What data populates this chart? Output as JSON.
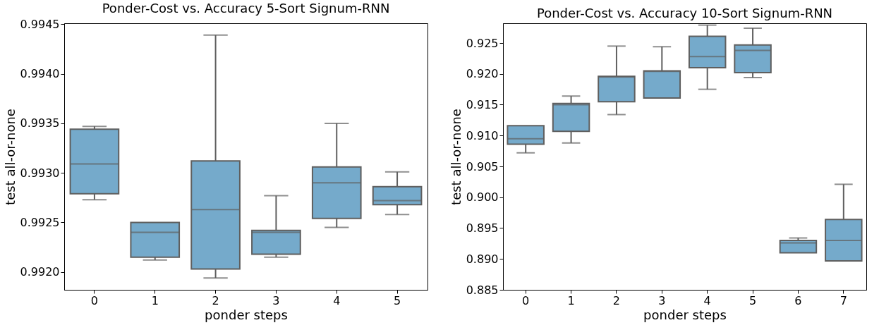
{
  "chart_data": [
    {
      "type": "box",
      "title": "Ponder-Cost vs. Accuracy 5-Sort Signum-RNN",
      "xlabel": "ponder steps",
      "ylabel": "test all-or-none",
      "categories": [
        "0",
        "1",
        "2",
        "3",
        "4",
        "5"
      ],
      "grid": false,
      "ylim": [
        0.99182,
        0.99451
      ],
      "yticks": [
        {
          "value": 0.992,
          "label": "0.9920"
        },
        {
          "value": 0.9925,
          "label": "0.9925"
        },
        {
          "value": 0.993,
          "label": "0.9930"
        },
        {
          "value": 0.9935,
          "label": "0.9935"
        },
        {
          "value": 0.994,
          "label": "0.9940"
        },
        {
          "value": 0.9945,
          "label": "0.9945"
        }
      ],
      "series": [
        {
          "color": "#75aacb",
          "boxes": [
            {
              "low": 0.99273,
              "q1": 0.99279,
              "median": 0.99309,
              "q3": 0.99344,
              "high": 0.99347
            },
            {
              "low": 0.99212,
              "q1": 0.99215,
              "median": 0.9924,
              "q3": 0.9925,
              "high": 0.9925
            },
            {
              "low": 0.99194,
              "q1": 0.99203,
              "median": 0.99263,
              "q3": 0.99312,
              "high": 0.99439
            },
            {
              "low": 0.99215,
              "q1": 0.99218,
              "median": 0.9924,
              "q3": 0.99242,
              "high": 0.99277
            },
            {
              "low": 0.99245,
              "q1": 0.99254,
              "median": 0.9929,
              "q3": 0.99306,
              "high": 0.9935
            },
            {
              "low": 0.99258,
              "q1": 0.99268,
              "median": 0.99272,
              "q3": 0.99286,
              "high": 0.99301
            }
          ]
        }
      ]
    },
    {
      "type": "box",
      "title": "Ponder-Cost vs. Accuracy 10-Sort Signum-RNN",
      "xlabel": "ponder steps",
      "ylabel": "test all-or-none",
      "categories": [
        "0",
        "1",
        "2",
        "3",
        "4",
        "5",
        "6",
        "7"
      ],
      "grid": false,
      "ylim": [
        0.885,
        0.9282
      ],
      "yticks": [
        {
          "value": 0.885,
          "label": "0.885"
        },
        {
          "value": 0.89,
          "label": "0.890"
        },
        {
          "value": 0.895,
          "label": "0.895"
        },
        {
          "value": 0.9,
          "label": "0.900"
        },
        {
          "value": 0.905,
          "label": "0.905"
        },
        {
          "value": 0.91,
          "label": "0.910"
        },
        {
          "value": 0.915,
          "label": "0.915"
        },
        {
          "value": 0.92,
          "label": "0.920"
        },
        {
          "value": 0.925,
          "label": "0.925"
        }
      ],
      "series": [
        {
          "color": "#75aacb",
          "boxes": [
            {
              "low": 0.9072,
              "q1": 0.9086,
              "median": 0.9095,
              "q3": 0.9116,
              "high": 0.9116
            },
            {
              "low": 0.9088,
              "q1": 0.9107,
              "median": 0.915,
              "q3": 0.9152,
              "high": 0.9164
            },
            {
              "low": 0.9134,
              "q1": 0.9155,
              "median": 0.9195,
              "q3": 0.9196,
              "high": 0.9245
            },
            {
              "low": 0.9161,
              "q1": 0.9161,
              "median": 0.9204,
              "q3": 0.9205,
              "high": 0.9244
            },
            {
              "low": 0.9175,
              "q1": 0.921,
              "median": 0.9228,
              "q3": 0.9261,
              "high": 0.9279
            },
            {
              "low": 0.9194,
              "q1": 0.9202,
              "median": 0.9238,
              "q3": 0.9247,
              "high": 0.9274
            },
            {
              "low": 0.891,
              "q1": 0.891,
              "median": 0.8926,
              "q3": 0.893,
              "high": 0.8934
            },
            {
              "low": 0.8897,
              "q1": 0.8897,
              "median": 0.893,
              "q3": 0.8964,
              "high": 0.9021
            }
          ]
        }
      ]
    }
  ]
}
